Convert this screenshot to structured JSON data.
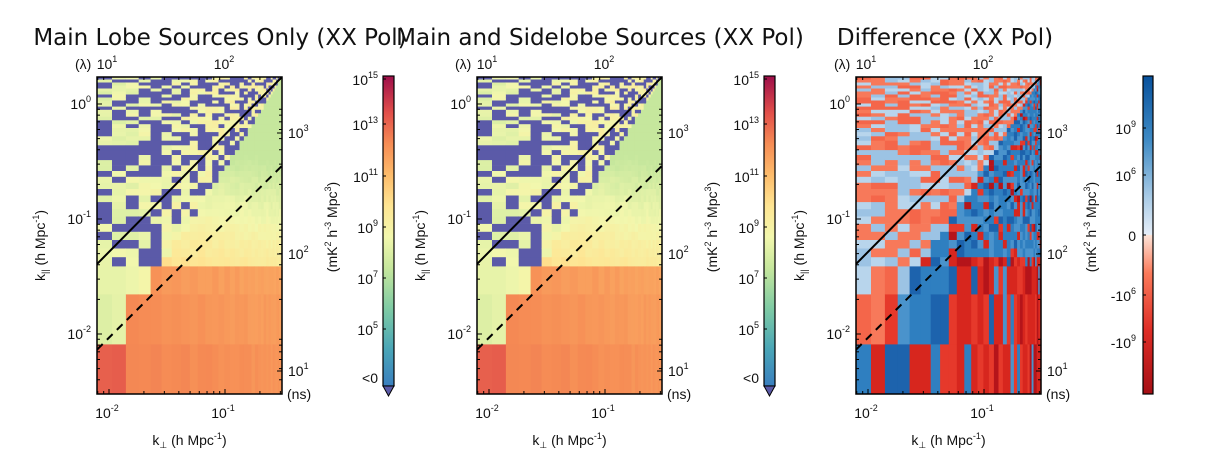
{
  "figure": {
    "panels": [
      {
        "title": "Main Lobe Sources Only (XX Pol)",
        "xlabel": "k⊥ (h Mpc⁻¹)",
        "ylabel": "k|| (h Mpc⁻¹)",
        "top_axis_unit": "(λ)",
        "right_axis_unit": "(ns)",
        "colorbar_label": "(mK² h⁻³ Mpc³)",
        "colormap": "spectral-log",
        "colorbar_ticks": [
          "10^15",
          "10^13",
          "10^11",
          "10^9",
          "10^7",
          "10^5",
          "<0"
        ],
        "colorbar_under_color": "#5b5aa8"
      },
      {
        "title": "Main and Sidelobe Sources (XX Pol)",
        "xlabel": "k⊥ (h Mpc⁻¹)",
        "ylabel": "k|| (h Mpc⁻¹)",
        "top_axis_unit": "(λ)",
        "right_axis_unit": "(ns)",
        "colorbar_label": "(mK² h⁻³ Mpc³)",
        "colormap": "spectral-log",
        "colorbar_ticks": [
          "10^15",
          "10^13",
          "10^11",
          "10^9",
          "10^7",
          "10^5",
          "<0"
        ],
        "colorbar_under_color": "#5b5aa8"
      },
      {
        "title": "Difference (XX Pol)",
        "xlabel": "k⊥ (h Mpc⁻¹)",
        "ylabel": "k|| (h Mpc⁻¹)",
        "top_axis_unit": "(λ)",
        "right_axis_unit": "(ns)",
        "colorbar_label": "(mK² h⁻³ Mpc³)",
        "colormap": "diverging-red-blue",
        "colorbar_ticks": [
          "10^9",
          "10^6",
          "0",
          "-10^6",
          "-10^9"
        ]
      }
    ]
  },
  "chart_data": [
    {
      "type": "heatmap",
      "title": "Main Lobe Sources Only (XX Pol)",
      "xlabel": "k⊥ (h Mpc⁻¹)",
      "ylabel": "k|| (h Mpc⁻¹)",
      "xscale": "log",
      "yscale": "log",
      "xlim": [
        0.0075,
        0.28
      ],
      "ylim": [
        0.0045,
        1.6
      ],
      "xticks": [
        "10^-2",
        "10^-1"
      ],
      "yticks": [
        "10^-2",
        "10^-1",
        "10^0"
      ],
      "top_axis": {
        "unit": "(λ)",
        "ticks": [
          "10^1",
          "10^2"
        ]
      },
      "right_axis": {
        "unit": "(ns)",
        "ticks": [
          "10^1",
          "10^2",
          "10^3"
        ]
      },
      "colorbar": {
        "label": "(mK² h⁻³ Mpc³)",
        "scale": "log",
        "range": [
          10000.0,
          1000000000000000.0
        ],
        "ticks": [
          "<0",
          "10^5",
          "10^7",
          "10^9",
          "10^11",
          "10^13",
          "10^15"
        ]
      },
      "overlays": [
        {
          "style": "solid",
          "description": "horizon line"
        },
        {
          "style": "dashed",
          "description": "primary beam line"
        }
      ],
      "notes": "Power ~1e13–1e14 at low k||, falling to ~1e8–1e9 above horizon; negative (<0) cells scattered above horizon line"
    },
    {
      "type": "heatmap",
      "title": "Main and Sidelobe Sources (XX Pol)",
      "xlabel": "k⊥ (h Mpc⁻¹)",
      "ylabel": "k|| (h Mpc⁻¹)",
      "xscale": "log",
      "yscale": "log",
      "xlim": [
        0.0075,
        0.28
      ],
      "ylim": [
        0.0045,
        1.6
      ],
      "xticks": [
        "10^-2",
        "10^-1"
      ],
      "yticks": [
        "10^-2",
        "10^-1",
        "10^0"
      ],
      "top_axis": {
        "unit": "(λ)",
        "ticks": [
          "10^1",
          "10^2"
        ]
      },
      "right_axis": {
        "unit": "(ns)",
        "ticks": [
          "10^1",
          "10^2",
          "10^3"
        ]
      },
      "colorbar": {
        "label": "(mK² h⁻³ Mpc³)",
        "scale": "log",
        "range": [
          10000.0,
          1000000000000000.0
        ],
        "ticks": [
          "<0",
          "10^5",
          "10^7",
          "10^9",
          "10^11",
          "10^13",
          "10^15"
        ]
      },
      "overlays": [
        {
          "style": "solid",
          "description": "horizon line"
        },
        {
          "style": "dashed",
          "description": "primary beam line"
        }
      ],
      "notes": "Nearly identical to main lobe panel"
    },
    {
      "type": "heatmap",
      "title": "Difference (XX Pol)",
      "xlabel": "k⊥ (h Mpc⁻¹)",
      "ylabel": "k|| (h Mpc⁻¹)",
      "xscale": "log",
      "yscale": "log",
      "xlim": [
        0.0075,
        0.28
      ],
      "ylim": [
        0.0045,
        1.6
      ],
      "xticks": [
        "10^-2",
        "10^-1"
      ],
      "yticks": [
        "10^-2",
        "10^-1",
        "10^0"
      ],
      "top_axis": {
        "unit": "(λ)",
        "ticks": [
          "10^1",
          "10^2"
        ]
      },
      "right_axis": {
        "unit": "(ns)",
        "ticks": [
          "10^1",
          "10^2",
          "10^3"
        ]
      },
      "colorbar": {
        "label": "(mK² h⁻³ Mpc³)",
        "scale": "symlog",
        "ticks": [
          "-10^9",
          "-10^6",
          "0",
          "10^6",
          "10^9"
        ]
      },
      "overlays": [
        {
          "style": "solid",
          "description": "horizon line"
        },
        {
          "style": "dashed",
          "description": "primary beam line"
        }
      ],
      "notes": "Mixed positive (blue) and negative (red) differences; blue dominant below horizon at mid k⊥, red dominant at low k⊥ and low k||"
    }
  ]
}
